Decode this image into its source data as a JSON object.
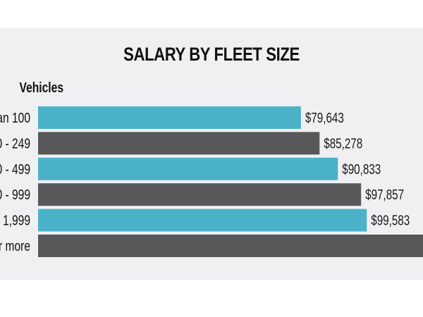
{
  "chart_data": {
    "type": "bar",
    "orientation": "horizontal",
    "title": "SALARY BY FLEET SIZE",
    "ylabel": "Vehicles",
    "xlabel": "",
    "categories": [
      "an 100",
      "0 - 249",
      "0 - 499",
      "0 - 999",
      "- 1,999",
      "r more"
    ],
    "values": [
      79643,
      85278,
      90833,
      97857,
      99583,
      null
    ],
    "value_labels": [
      "$79,643",
      "$85,278",
      "$90,833",
      "$97,857",
      "$99,583",
      ""
    ],
    "bar_colors": [
      "#4bb3c9",
      "#58585a",
      "#4bb3c9",
      "#58585a",
      "#4bb3c9",
      "#58585a"
    ],
    "grid": false,
    "legend": "none",
    "note_last_bar": "extends beyond visible area; value not shown"
  },
  "colors": {
    "background": "#f0f0f2",
    "teal": "#4bb3c9",
    "gray": "#58585a",
    "text": "#111111"
  }
}
